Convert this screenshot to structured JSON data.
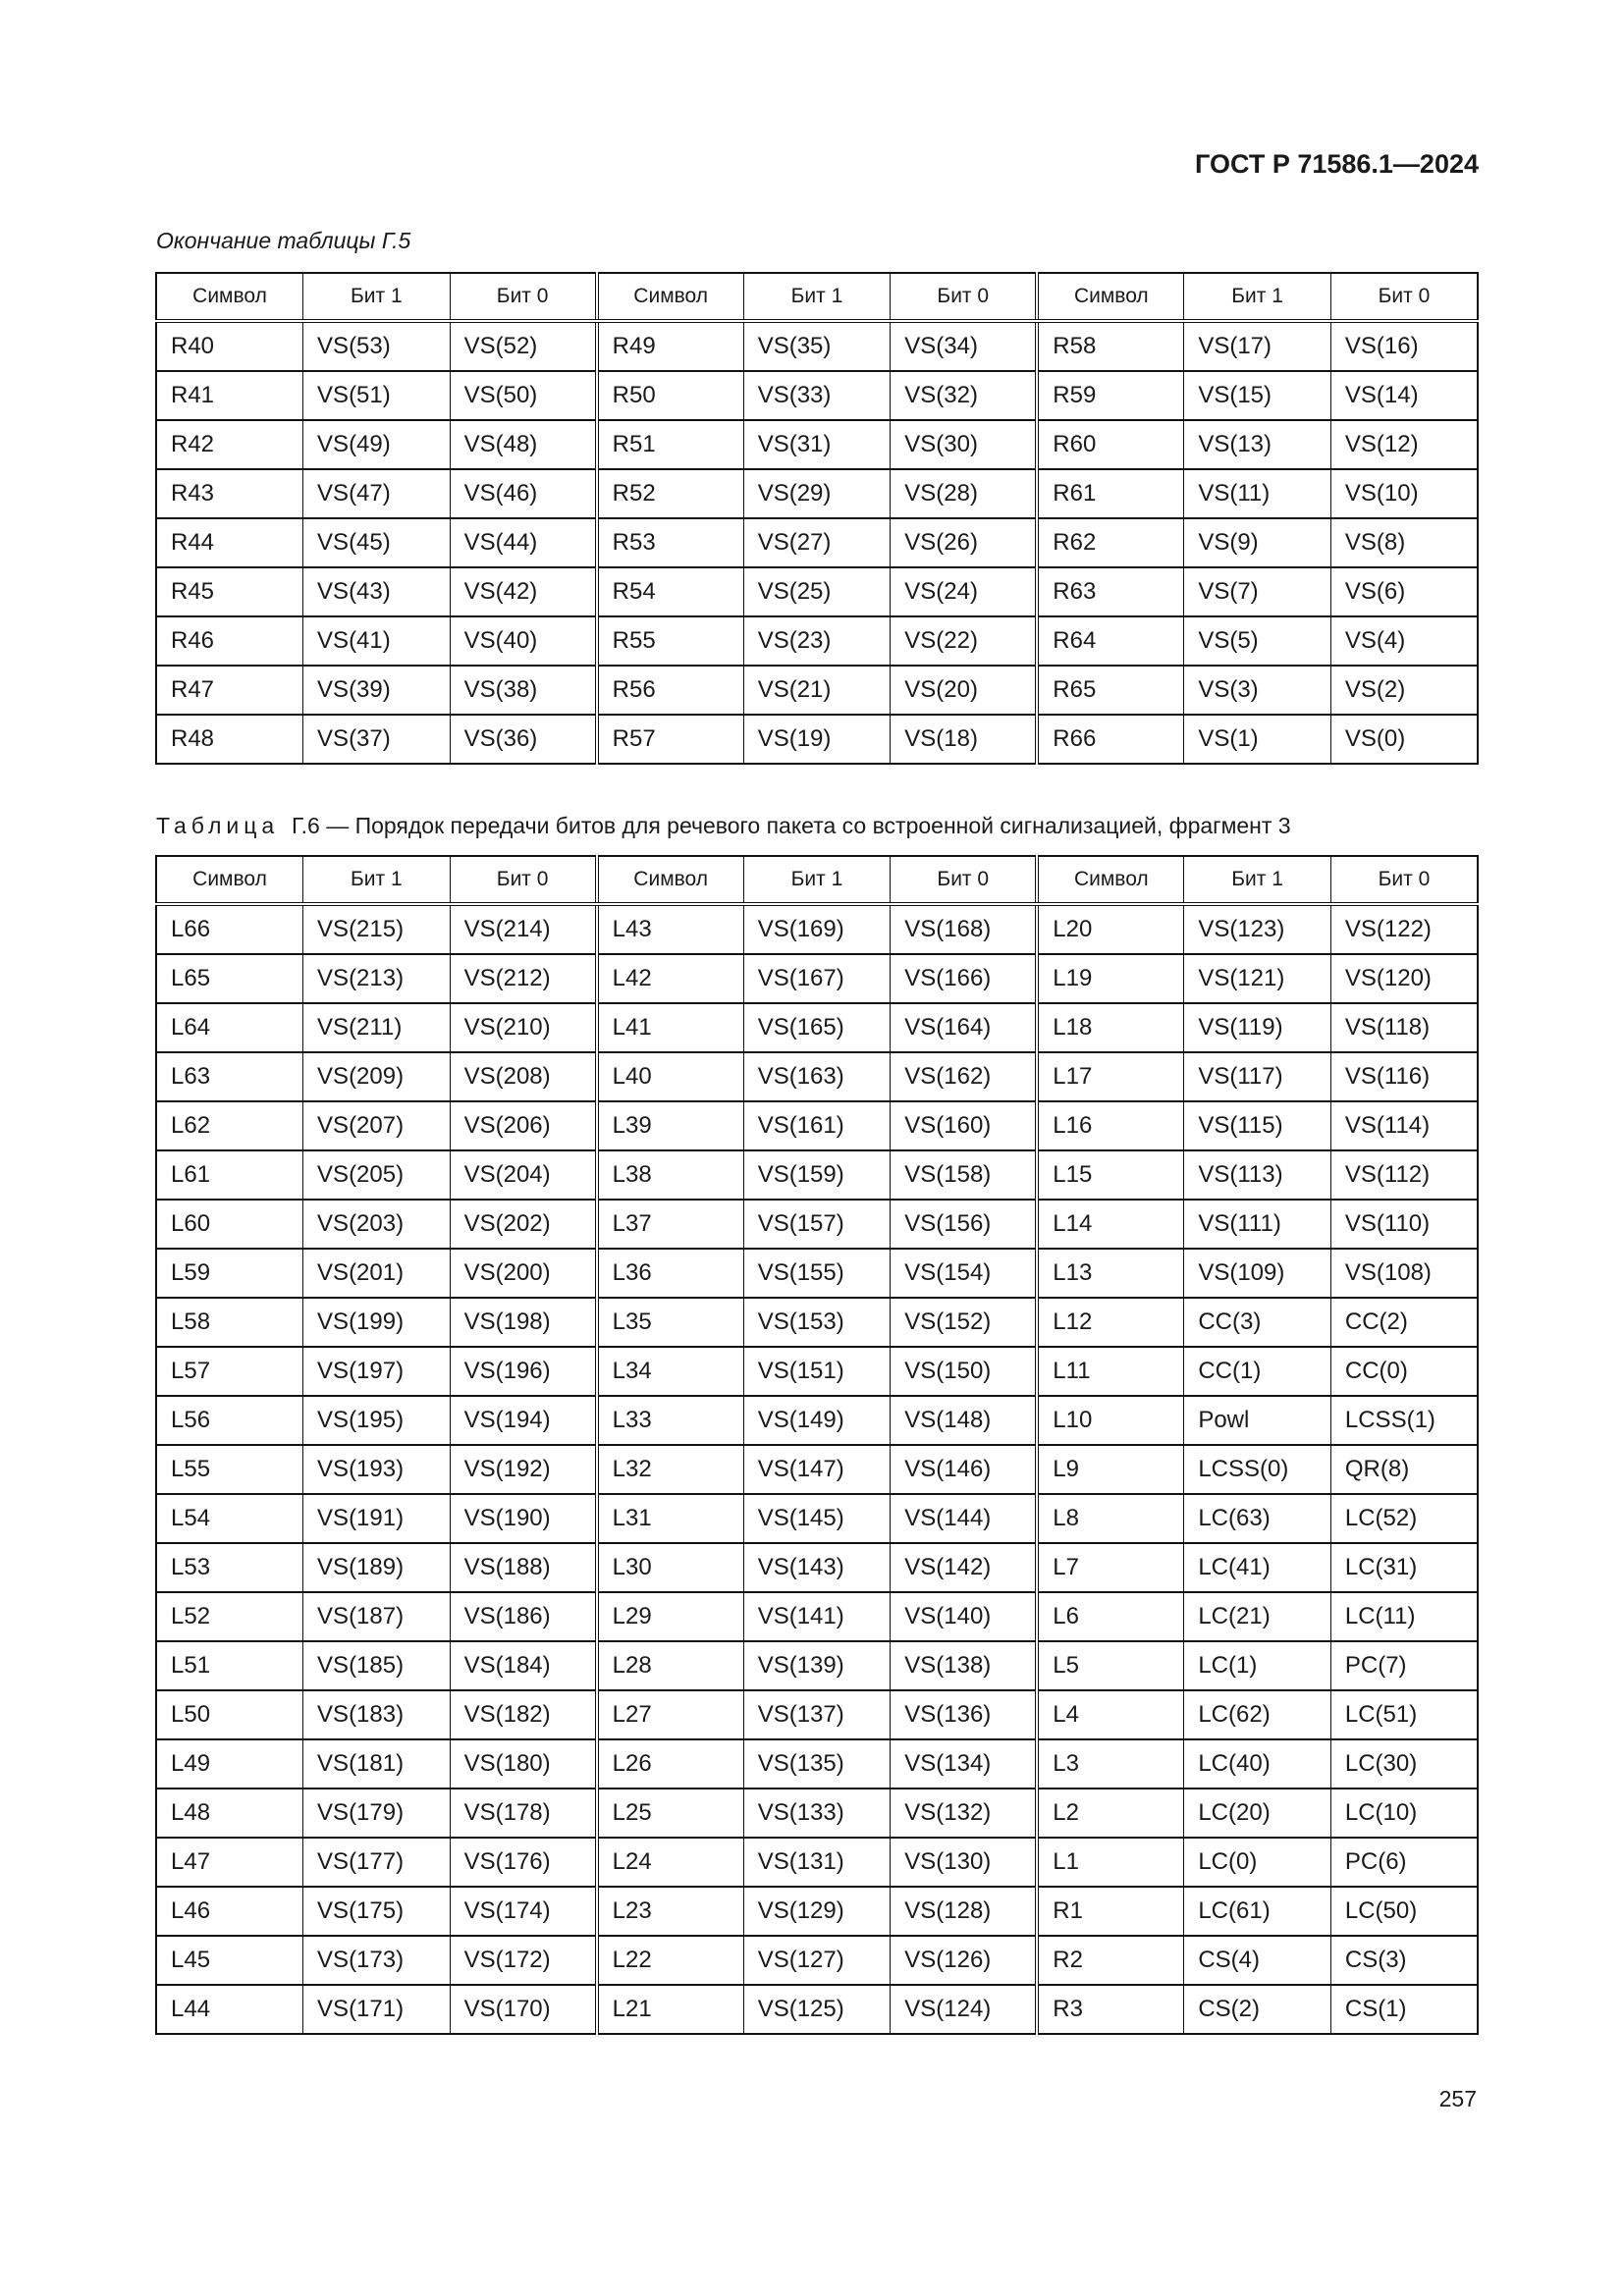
{
  "header": {
    "doc_id": "ГОСТ Р 71586.1—2024"
  },
  "table1": {
    "caption": "Окончание таблицы Г.5",
    "columns": [
      "Символ",
      "Бит 1",
      "Бит 0",
      "Символ",
      "Бит 1",
      "Бит 0",
      "Символ",
      "Бит 1",
      "Бит 0"
    ],
    "rows": [
      [
        "R40",
        "VS(53)",
        "VS(52)",
        "R49",
        "VS(35)",
        "VS(34)",
        "R58",
        "VS(17)",
        "VS(16)"
      ],
      [
        "R41",
        "VS(51)",
        "VS(50)",
        "R50",
        "VS(33)",
        "VS(32)",
        "R59",
        "VS(15)",
        "VS(14)"
      ],
      [
        "R42",
        "VS(49)",
        "VS(48)",
        "R51",
        "VS(31)",
        "VS(30)",
        "R60",
        "VS(13)",
        "VS(12)"
      ],
      [
        "R43",
        "VS(47)",
        "VS(46)",
        "R52",
        "VS(29)",
        "VS(28)",
        "R61",
        "VS(11)",
        "VS(10)"
      ],
      [
        "R44",
        "VS(45)",
        "VS(44)",
        "R53",
        "VS(27)",
        "VS(26)",
        "R62",
        "VS(9)",
        "VS(8)"
      ],
      [
        "R45",
        "VS(43)",
        "VS(42)",
        "R54",
        "VS(25)",
        "VS(24)",
        "R63",
        "VS(7)",
        "VS(6)"
      ],
      [
        "R46",
        "VS(41)",
        "VS(40)",
        "R55",
        "VS(23)",
        "VS(22)",
        "R64",
        "VS(5)",
        "VS(4)"
      ],
      [
        "R47",
        "VS(39)",
        "VS(38)",
        "R56",
        "VS(21)",
        "VS(20)",
        "R65",
        "VS(3)",
        "VS(2)"
      ],
      [
        "R48",
        "VS(37)",
        "VS(36)",
        "R57",
        "VS(19)",
        "VS(18)",
        "R66",
        "VS(1)",
        "VS(0)"
      ]
    ]
  },
  "table2": {
    "caption_label": "Таблица",
    "caption_text": "Г.6 — Порядок передачи битов для речевого пакета со встроенной сигнализацией, фрагмент 3",
    "columns": [
      "Символ",
      "Бит 1",
      "Бит 0",
      "Символ",
      "Бит 1",
      "Бит 0",
      "Символ",
      "Бит 1",
      "Бит 0"
    ],
    "rows": [
      [
        "L66",
        "VS(215)",
        "VS(214)",
        "L43",
        "VS(169)",
        "VS(168)",
        "L20",
        "VS(123)",
        "VS(122)"
      ],
      [
        "L65",
        "VS(213)",
        "VS(212)",
        "L42",
        "VS(167)",
        "VS(166)",
        "L19",
        "VS(121)",
        "VS(120)"
      ],
      [
        "L64",
        "VS(211)",
        "VS(210)",
        "L41",
        "VS(165)",
        "VS(164)",
        "L18",
        "VS(119)",
        "VS(118)"
      ],
      [
        "L63",
        "VS(209)",
        "VS(208)",
        "L40",
        "VS(163)",
        "VS(162)",
        "L17",
        "VS(117)",
        "VS(116)"
      ],
      [
        "L62",
        "VS(207)",
        "VS(206)",
        "L39",
        "VS(161)",
        "VS(160)",
        "L16",
        "VS(115)",
        "VS(114)"
      ],
      [
        "L61",
        "VS(205)",
        "VS(204)",
        "L38",
        "VS(159)",
        "VS(158)",
        "L15",
        "VS(113)",
        "VS(112)"
      ],
      [
        "L60",
        "VS(203)",
        "VS(202)",
        "L37",
        "VS(157)",
        "VS(156)",
        "L14",
        "VS(111)",
        "VS(110)"
      ],
      [
        "L59",
        "VS(201)",
        "VS(200)",
        "L36",
        "VS(155)",
        "VS(154)",
        "L13",
        "VS(109)",
        "VS(108)"
      ],
      [
        "L58",
        "VS(199)",
        "VS(198)",
        "L35",
        "VS(153)",
        "VS(152)",
        "L12",
        "CC(3)",
        "CC(2)"
      ],
      [
        "L57",
        "VS(197)",
        "VS(196)",
        "L34",
        "VS(151)",
        "VS(150)",
        "L11",
        "CC(1)",
        "CC(0)"
      ],
      [
        "L56",
        "VS(195)",
        "VS(194)",
        "L33",
        "VS(149)",
        "VS(148)",
        "L10",
        "Powl",
        "LCSS(1)"
      ],
      [
        "L55",
        "VS(193)",
        "VS(192)",
        "L32",
        "VS(147)",
        "VS(146)",
        "L9",
        "LCSS(0)",
        "QR(8)"
      ],
      [
        "L54",
        "VS(191)",
        "VS(190)",
        "L31",
        "VS(145)",
        "VS(144)",
        "L8",
        "LC(63)",
        "LC(52)"
      ],
      [
        "L53",
        "VS(189)",
        "VS(188)",
        "L30",
        "VS(143)",
        "VS(142)",
        "L7",
        "LC(41)",
        "LC(31)"
      ],
      [
        "L52",
        "VS(187)",
        "VS(186)",
        "L29",
        "VS(141)",
        "VS(140)",
        "L6",
        "LC(21)",
        "LC(11)"
      ],
      [
        "L51",
        "VS(185)",
        "VS(184)",
        "L28",
        "VS(139)",
        "VS(138)",
        "L5",
        "LC(1)",
        "PC(7)"
      ],
      [
        "L50",
        "VS(183)",
        "VS(182)",
        "L27",
        "VS(137)",
        "VS(136)",
        "L4",
        "LC(62)",
        "LC(51)"
      ],
      [
        "L49",
        "VS(181)",
        "VS(180)",
        "L26",
        "VS(135)",
        "VS(134)",
        "L3",
        "LC(40)",
        "LC(30)"
      ],
      [
        "L48",
        "VS(179)",
        "VS(178)",
        "L25",
        "VS(133)",
        "VS(132)",
        "L2",
        "LC(20)",
        "LC(10)"
      ],
      [
        "L47",
        "VS(177)",
        "VS(176)",
        "L24",
        "VS(131)",
        "VS(130)",
        "L1",
        "LC(0)",
        "PC(6)"
      ],
      [
        "L46",
        "VS(175)",
        "VS(174)",
        "L23",
        "VS(129)",
        "VS(128)",
        "R1",
        "LC(61)",
        "LC(50)"
      ],
      [
        "L45",
        "VS(173)",
        "VS(172)",
        "L22",
        "VS(127)",
        "VS(126)",
        "R2",
        "CS(4)",
        "CS(3)"
      ],
      [
        "L44",
        "VS(171)",
        "VS(170)",
        "L21",
        "VS(125)",
        "VS(124)",
        "R3",
        "CS(2)",
        "CS(1)"
      ]
    ]
  },
  "footer": {
    "page_number": "257"
  }
}
